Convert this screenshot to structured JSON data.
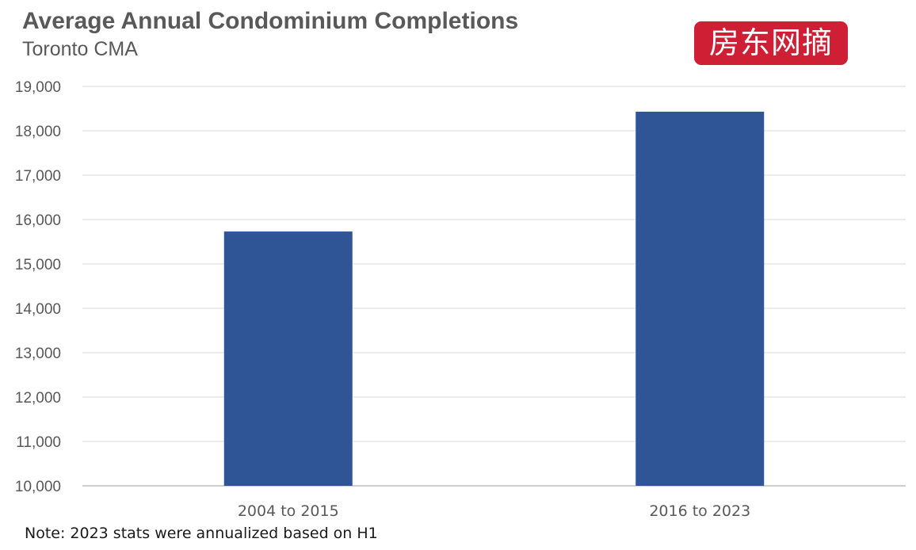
{
  "chart_data": {
    "type": "bar",
    "title": "Average Annual Condominium Completions",
    "subtitle": "Toronto CMA",
    "categories": [
      "2004 to 2015",
      "2016 to 2023"
    ],
    "values": [
      15730,
      18430
    ],
    "ylim": [
      10000,
      19000
    ],
    "yticks": [
      10000,
      11000,
      12000,
      13000,
      14000,
      15000,
      16000,
      17000,
      18000,
      19000
    ],
    "ytick_labels": [
      "10,000",
      "11,000",
      "12,000",
      "13,000",
      "14,000",
      "15,000",
      "16,000",
      "17,000",
      "18,000",
      "19,000"
    ],
    "xlabel": "",
    "ylabel": "",
    "grid": true,
    "bar_color": "#2f5597",
    "gridline_color": "#d9d9d9",
    "note": "Note: 2023 stats were annualized based on H1"
  },
  "watermark": {
    "text": "房东网摘",
    "color": "#cf1f35"
  }
}
